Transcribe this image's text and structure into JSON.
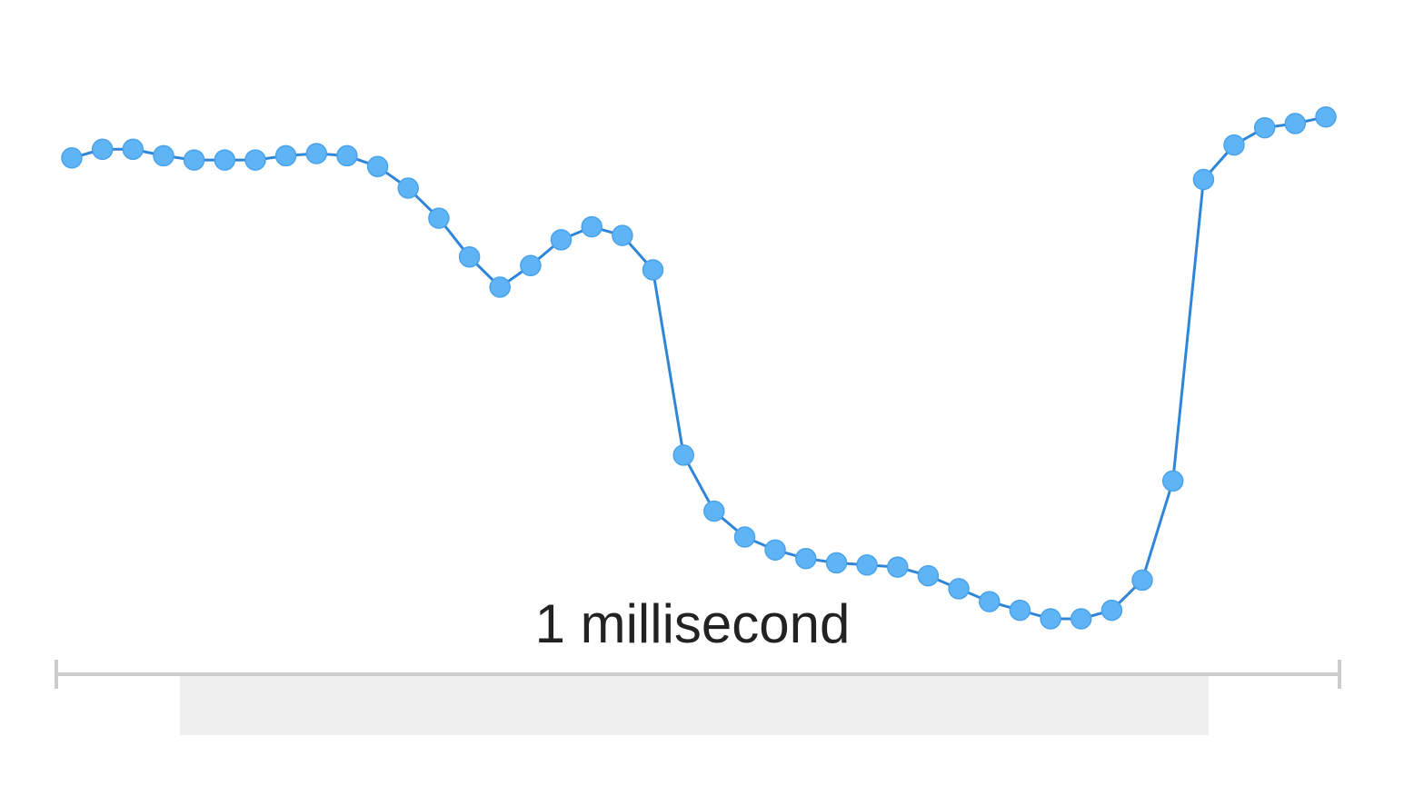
{
  "chart_data": {
    "type": "line",
    "title": "",
    "xlabel": "",
    "ylabel": "",
    "grid": false,
    "legend": "none",
    "x": [
      0,
      1,
      2,
      3,
      4,
      5,
      6,
      7,
      8,
      9,
      10,
      11,
      12,
      13,
      14,
      15,
      16,
      17,
      18,
      19,
      20,
      21,
      22,
      23,
      24,
      25,
      26,
      27,
      28,
      29,
      30,
      31,
      32,
      33,
      34,
      35,
      36,
      37,
      38,
      39,
      40,
      41
    ],
    "series": [
      {
        "values": [
          86,
          88,
          88,
          86.5,
          85.5,
          85.5,
          85.5,
          86.5,
          87,
          86.5,
          84,
          79,
          72,
          63,
          56,
          61,
          67,
          70,
          68,
          60,
          17,
          4,
          -2,
          -5,
          -7,
          -8,
          -8.5,
          -9,
          -11,
          -14,
          -17,
          -19,
          -21,
          -21,
          -19,
          -12,
          11,
          81,
          89,
          93,
          94,
          95.5
        ],
        "color": "#5fb4f5",
        "line_color": "#2f86d8"
      }
    ],
    "ylim": [
      -25,
      110
    ],
    "scale_bar": {
      "label": "1 millisecond",
      "color": "#cccccc"
    },
    "shaded_band_color": "#efefef"
  }
}
